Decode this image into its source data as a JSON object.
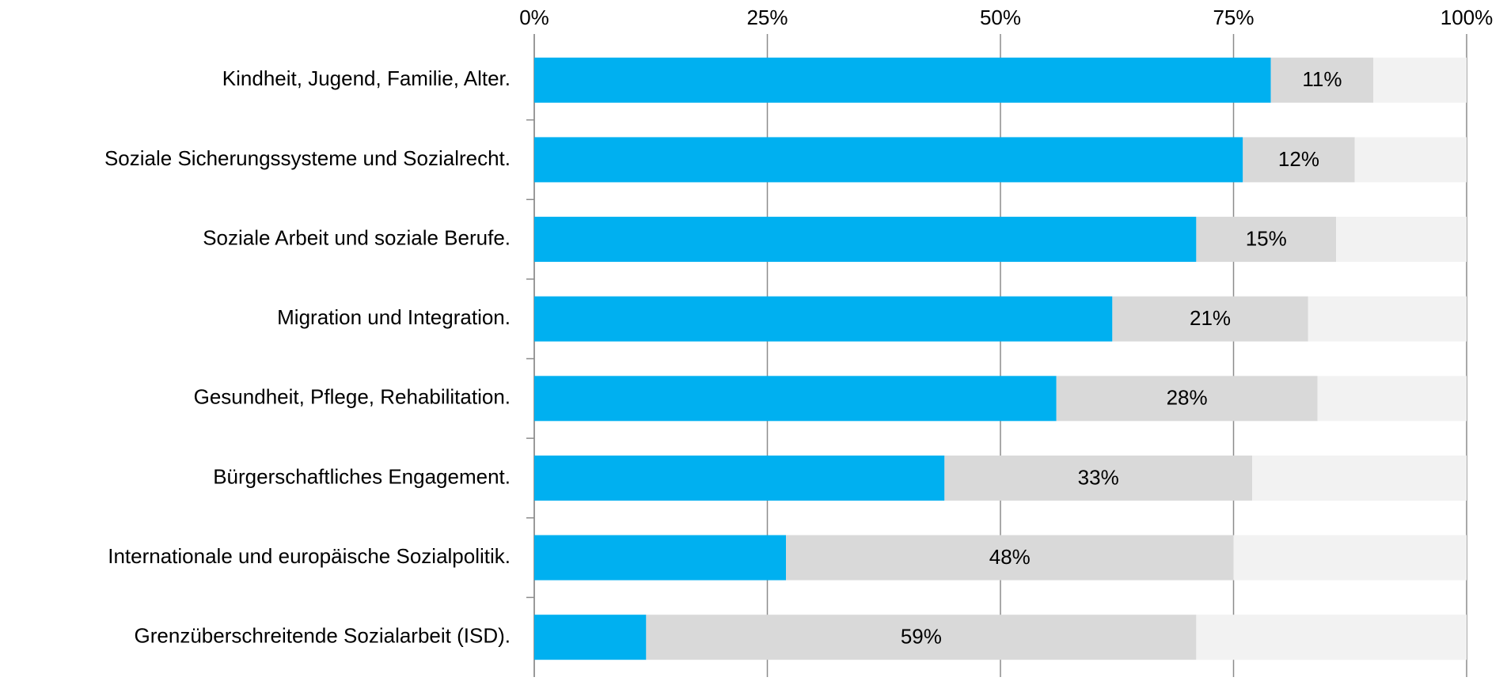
{
  "chart_data": {
    "type": "stacked_bar_horizontal",
    "categories": [
      "Kindheit, Jugend, Familie, Alter.",
      "Soziale Sicherungssysteme und Sozialrecht.",
      "Soziale Arbeit und soziale Berufe.",
      "Migration und Integration.",
      "Gesundheit, Pflege, Rehabilitation.",
      "Bürgerschaftliches Engagement.",
      "Internationale und europäische Sozialpolitik.",
      "Grenzüberschreitende Sozialarbeit (ISD)."
    ],
    "series": [
      {
        "color": "#00b0f0",
        "values": [
          79,
          76,
          71,
          62,
          56,
          44,
          27,
          12
        ]
      },
      {
        "color": "#d9d9d9",
        "values": [
          11,
          12,
          15,
          21,
          28,
          33,
          48,
          59
        ],
        "value_labels": [
          "11%",
          "12%",
          "15%",
          "21%",
          "28%",
          "33%",
          "48%",
          "59%"
        ]
      },
      {
        "color": "#f2f2f2",
        "values": [
          10,
          12,
          14,
          17,
          16,
          23,
          25,
          29
        ]
      }
    ],
    "xlim": [
      0,
      100
    ],
    "xticks": [
      {
        "value": 0,
        "label": "0%"
      },
      {
        "value": 25,
        "label": "25%"
      },
      {
        "value": 50,
        "label": "50%"
      },
      {
        "value": 75,
        "label": "75%"
      },
      {
        "value": 100,
        "label": "100%"
      }
    ],
    "grid": true
  }
}
